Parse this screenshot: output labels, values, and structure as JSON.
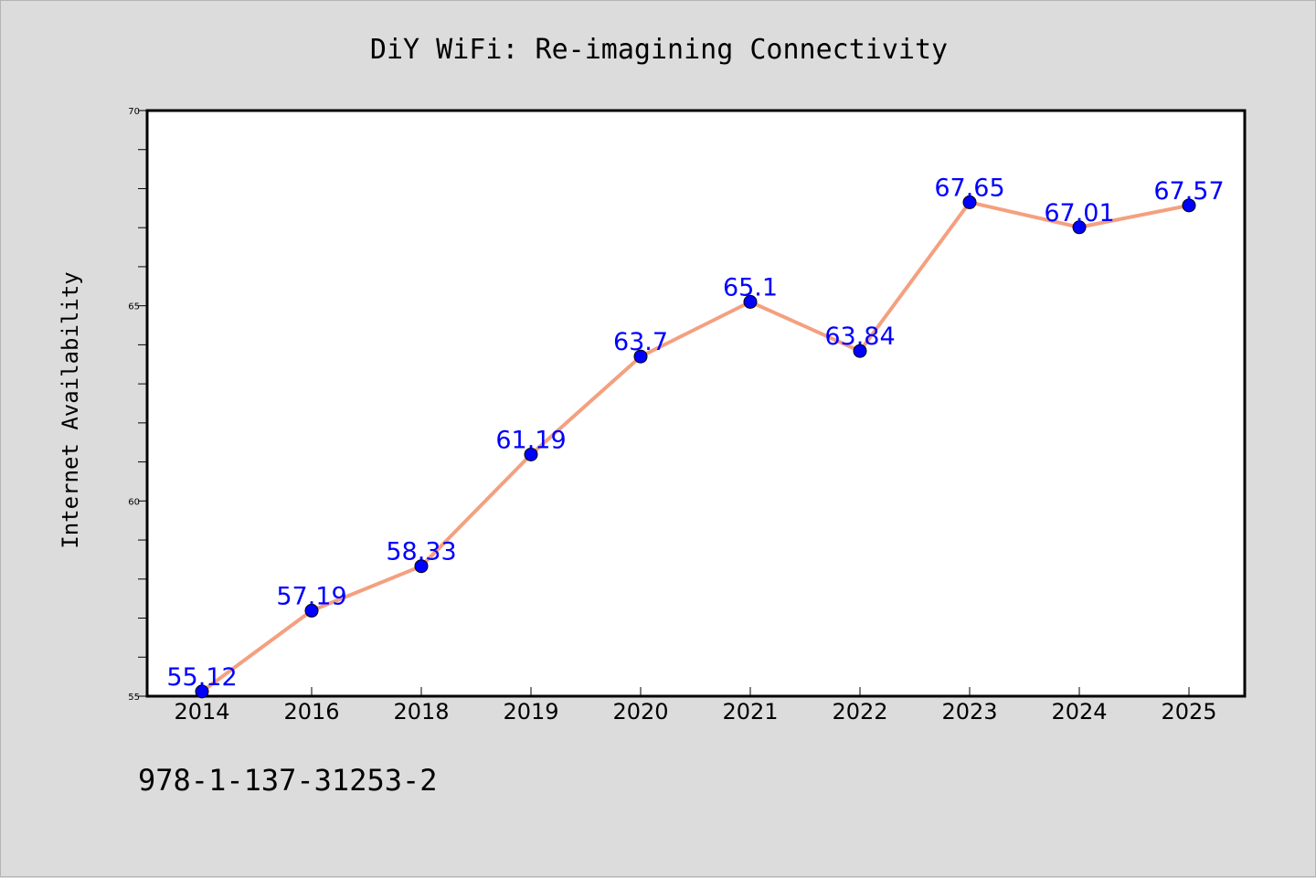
{
  "chart_data": {
    "type": "line",
    "title": "DiY WiFi: Re-imagining Connectivity",
    "xlabel": "",
    "ylabel": "Internet Availability",
    "categories": [
      "2014",
      "2016",
      "2018",
      "2019",
      "2020",
      "2021",
      "2022",
      "2023",
      "2024",
      "2025"
    ],
    "series": [
      {
        "values": [
          55.12,
          57.19,
          58.33,
          61.19,
          63.7,
          65.1,
          63.84,
          67.65,
          67.01,
          67.57
        ],
        "labels": [
          "55.12",
          "57.19",
          "58.33",
          "61.19",
          "63.7",
          "65.1",
          "63.84",
          "67.65",
          "67.01",
          "67.57"
        ],
        "line_color": "#f4a07f",
        "marker_color": "#0000ff",
        "label_color": "#0000ff"
      }
    ],
    "ylim": [
      55,
      70
    ],
    "y_ticks": [
      "55",
      "60",
      "65",
      "70"
    ],
    "grid": false,
    "legend": "none"
  },
  "footer": {
    "isbn": "978-1-137-31253-2"
  },
  "colors": {
    "figure_background": "#dcdcdc",
    "plot_background": "#ffffff",
    "axes_frame": "#000000"
  }
}
